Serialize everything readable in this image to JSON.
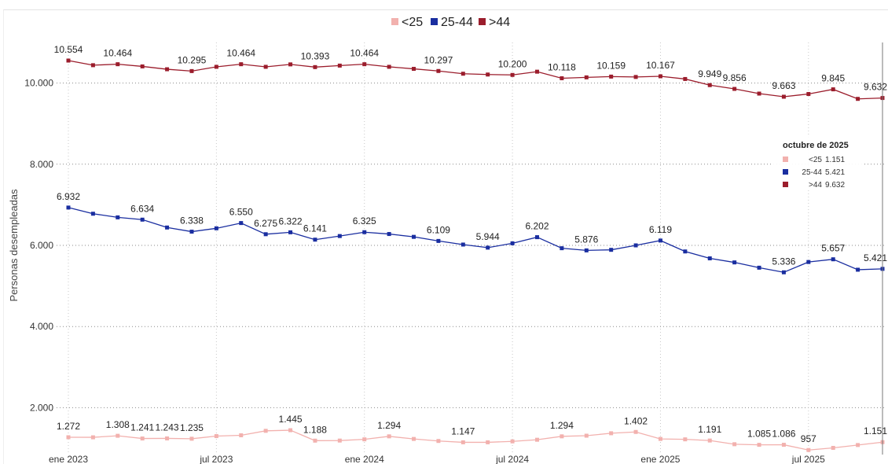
{
  "chart_data": {
    "type": "line",
    "ylabel": "Personas desempleadas",
    "ylim": [
      1000,
      11000
    ],
    "y_ticks": [
      2000,
      4000,
      6000,
      8000,
      10000
    ],
    "y_tick_labels": [
      "2.000",
      "4.000",
      "6.000",
      "8.000",
      "10.000"
    ],
    "grid": true,
    "legend_position": "top-center",
    "x_tick_labels": [
      {
        "index": 0,
        "label": "ene 2023"
      },
      {
        "index": 6,
        "label": "jul 2023"
      },
      {
        "index": 12,
        "label": "ene 2024"
      },
      {
        "index": 18,
        "label": "jul 2024"
      },
      {
        "index": 24,
        "label": "ene 2025"
      },
      {
        "index": 30,
        "label": "jul 2025"
      }
    ],
    "x": [
      "ene 2023",
      "feb 2023",
      "mar 2023",
      "abr 2023",
      "may 2023",
      "jun 2023",
      "jul 2023",
      "ago 2023",
      "sep 2023",
      "oct 2023",
      "nov 2023",
      "dic 2023",
      "ene 2024",
      "feb 2024",
      "mar 2024",
      "abr 2024",
      "may 2024",
      "jun 2024",
      "jul 2024",
      "ago 2024",
      "sep 2024",
      "oct 2024",
      "nov 2024",
      "dic 2024",
      "ene 2025",
      "feb 2025",
      "mar 2025",
      "abr 2025",
      "may 2025",
      "jun 2025",
      "jul 2025",
      "ago 2025",
      "sep 2025",
      "oct 2025"
    ],
    "series": [
      {
        "name": "<25",
        "color": "#f2b1ae",
        "values": [
          1272,
          1270,
          1308,
          1241,
          1243,
          1235,
          1300,
          1320,
          1430,
          1445,
          1188,
          1190,
          1220,
          1294,
          1230,
          1180,
          1147,
          1147,
          1170,
          1210,
          1294,
          1310,
          1370,
          1402,
          1230,
          1220,
          1191,
          1100,
          1085,
          1086,
          957,
          1010,
          1080,
          1151
        ],
        "labels": [
          {
            "index": 0,
            "text": "1.272"
          },
          {
            "index": 2,
            "text": "1.308"
          },
          {
            "index": 3,
            "text": "1.241"
          },
          {
            "index": 4,
            "text": "1.243"
          },
          {
            "index": 5,
            "text": "1.235"
          },
          {
            "index": 9,
            "text": "1.445"
          },
          {
            "index": 10,
            "text": "1.188"
          },
          {
            "index": 13,
            "text": "1.294"
          },
          {
            "index": 16,
            "text": "1.147"
          },
          {
            "index": 20,
            "text": "1.294"
          },
          {
            "index": 23,
            "text": "1.402"
          },
          {
            "index": 26,
            "text": "1.191"
          },
          {
            "index": 28,
            "text": "1.085"
          },
          {
            "index": 29,
            "text": "1.086"
          },
          {
            "index": 30,
            "text": "957"
          },
          {
            "index": 33,
            "text": "1.151"
          }
        ]
      },
      {
        "name": "25-44",
        "color": "#1a2ea0",
        "values": [
          6932,
          6780,
          6690,
          6634,
          6440,
          6338,
          6420,
          6550,
          6275,
          6322,
          6141,
          6230,
          6325,
          6280,
          6210,
          6109,
          6020,
          5944,
          6050,
          6202,
          5930,
          5876,
          5890,
          6000,
          6119,
          5850,
          5680,
          5580,
          5450,
          5336,
          5590,
          5657,
          5400,
          5421
        ],
        "labels": [
          {
            "index": 0,
            "text": "6.932"
          },
          {
            "index": 3,
            "text": "6.634"
          },
          {
            "index": 5,
            "text": "6.338"
          },
          {
            "index": 7,
            "text": "6.550"
          },
          {
            "index": 8,
            "text": "6.275"
          },
          {
            "index": 9,
            "text": "6.322"
          },
          {
            "index": 10,
            "text": "6.141"
          },
          {
            "index": 12,
            "text": "6.325"
          },
          {
            "index": 15,
            "text": "6.109"
          },
          {
            "index": 17,
            "text": "5.944"
          },
          {
            "index": 19,
            "text": "6.202"
          },
          {
            "index": 21,
            "text": "5.876"
          },
          {
            "index": 24,
            "text": "6.119"
          },
          {
            "index": 29,
            "text": "5.336"
          },
          {
            "index": 31,
            "text": "5.657"
          },
          {
            "index": 33,
            "text": "5.421"
          }
        ]
      },
      {
        "name": ">44",
        "color": "#9b1d2c",
        "values": [
          10554,
          10440,
          10464,
          10410,
          10340,
          10295,
          10400,
          10464,
          10400,
          10460,
          10393,
          10430,
          10464,
          10400,
          10350,
          10297,
          10230,
          10210,
          10200,
          10280,
          10118,
          10140,
          10159,
          10150,
          10167,
          10100,
          9949,
          9856,
          9740,
          9663,
          9730,
          9845,
          9610,
          9632
        ],
        "labels": [
          {
            "index": 0,
            "text": "10.554"
          },
          {
            "index": 2,
            "text": "10.464"
          },
          {
            "index": 5,
            "text": "10.295"
          },
          {
            "index": 7,
            "text": "10.464"
          },
          {
            "index": 10,
            "text": "10.393"
          },
          {
            "index": 12,
            "text": "10.464"
          },
          {
            "index": 15,
            "text": "10.297"
          },
          {
            "index": 18,
            "text": "10.200"
          },
          {
            "index": 20,
            "text": "10.118"
          },
          {
            "index": 22,
            "text": "10.159"
          },
          {
            "index": 24,
            "text": "10.167"
          },
          {
            "index": 26,
            "text": "9.949"
          },
          {
            "index": 27,
            "text": "9.856"
          },
          {
            "index": 29,
            "text": "9.663"
          },
          {
            "index": 31,
            "text": "9.845"
          },
          {
            "index": 33,
            "text": "9.632"
          }
        ]
      }
    ],
    "tooltip": {
      "title": "octubre de 2025",
      "rows": [
        {
          "name": "<25",
          "value": "1.151",
          "color": "#f2b1ae"
        },
        {
          "name": "25-44",
          "value": "5.421",
          "color": "#1a2ea0"
        },
        {
          "name": ">44",
          "value": "9.632",
          "color": "#9b1d2c"
        }
      ]
    }
  }
}
